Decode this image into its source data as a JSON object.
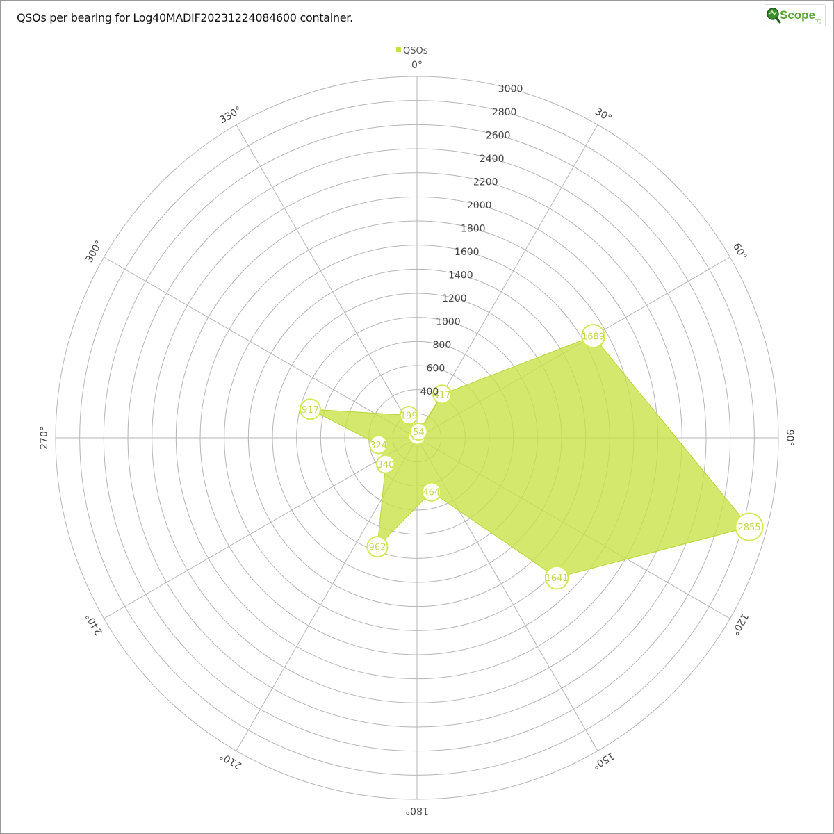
{
  "title": "QSOs per bearing for Log40MADIF20231224084600 container.",
  "logo": {
    "text": "Scope",
    "suffix": ".org"
  },
  "colors": {
    "fill": "#c6e244",
    "stroke": "#b5d634",
    "marker_stroke": "#d3ea55",
    "grid": "#b5b5b5",
    "text": "#444444"
  },
  "chart_data": {
    "type": "radar",
    "title": "QSOs per bearing for Log40MADIF20231224084600 container.",
    "angular_axis": {
      "labels": [
        "0°",
        "30°",
        "60°",
        "90°",
        "120°",
        "150°",
        "180°",
        "210°",
        "240°",
        "270°",
        "300°",
        "330°"
      ],
      "step_degrees": 30,
      "direction": "clockwise",
      "zero": "top"
    },
    "radial_axis": {
      "range": [
        0,
        3000
      ],
      "ticks": [
        0,
        200,
        400,
        600,
        800,
        1000,
        1200,
        1400,
        1600,
        1800,
        2000,
        2200,
        2400,
        2600,
        2800,
        3000
      ],
      "tick_labels": [
        "400",
        "600",
        "800",
        "1000",
        "1200",
        "1400",
        "1600",
        "1800",
        "2000",
        "2200",
        "2400",
        "2600",
        "2800",
        "3000"
      ],
      "label_bearing_degrees": 15
    },
    "grid": true,
    "legend": {
      "position": "top-center",
      "entries": [
        "QSOs"
      ]
    },
    "series": [
      {
        "name": "QSOs",
        "points": [
          {
            "bearing": 0,
            "value": 14,
            "label": "14"
          },
          {
            "bearing": 15,
            "value": 54,
            "label": "54"
          },
          {
            "bearing": 30,
            "value": 417,
            "label": "417"
          },
          {
            "bearing": 60,
            "value": 1689,
            "label": "1689"
          },
          {
            "bearing": 105,
            "value": 2855,
            "label": "2855"
          },
          {
            "bearing": 135,
            "value": 1641,
            "label": "1641"
          },
          {
            "bearing": 165,
            "value": 464,
            "label": "464"
          },
          {
            "bearing": 200,
            "value": 962,
            "label": "962"
          },
          {
            "bearing": 230,
            "value": 340,
            "label": "340"
          },
          {
            "bearing": 260,
            "value": 324,
            "label": "324"
          },
          {
            "bearing": 285,
            "value": 917,
            "label": "917"
          },
          {
            "bearing": 340,
            "value": 199,
            "label": "199"
          }
        ]
      }
    ]
  }
}
